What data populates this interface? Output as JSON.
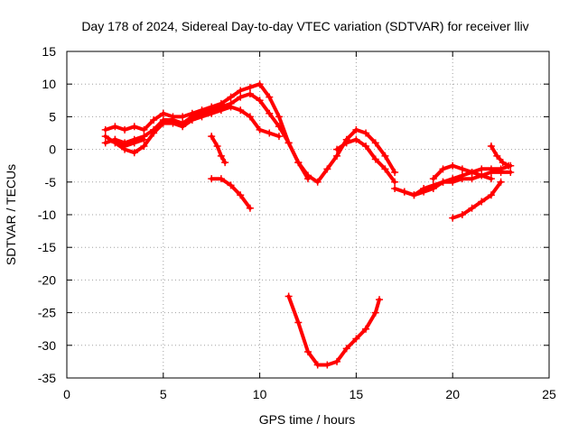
{
  "chart_data": {
    "type": "scatter",
    "title": "Day 178 of 2024, Sidereal Day-to-day VTEC variation (SDTVAR) for receiver lliv",
    "xlabel": "GPS time / hours",
    "ylabel": "SDTVAR / TECUs",
    "xlim": [
      0,
      25
    ],
    "ylim": [
      -35,
      15
    ],
    "xticks": [
      "0",
      "5",
      "10",
      "15",
      "20",
      "25"
    ],
    "yticks": [
      "15",
      "10",
      "5",
      "0",
      "-5",
      "-10",
      "-15",
      "-20",
      "-25",
      "-30",
      "-35"
    ],
    "grid": true,
    "marker": "plus",
    "color": "#ff0000",
    "series": [
      {
        "x": [
          2.0,
          2.5,
          3.0,
          3.5,
          4.0,
          4.5,
          5.0,
          5.5,
          6.0,
          6.5,
          7.0,
          7.5,
          8.0,
          8.5,
          9.0,
          9.5,
          10.0,
          10.5,
          11.0,
          11.5,
          12.0,
          12.5,
          13.0,
          13.5,
          14.0,
          14.5,
          15.0,
          15.5,
          16.0,
          16.5,
          17.0
        ],
        "y": [
          3.0,
          3.5,
          3.0,
          3.5,
          3.0,
          4.5,
          5.5,
          5.0,
          5.0,
          5.5,
          6.0,
          6.5,
          7.0,
          8.0,
          9.0,
          9.5,
          10.0,
          8.0,
          5.0,
          1.0,
          -2.0,
          -4.0,
          -5.0,
          -3.0,
          -1.0,
          1.5,
          3.0,
          2.5,
          1.0,
          -1.0,
          -3.5
        ]
      },
      {
        "x": [
          2.0,
          2.5,
          3.0,
          3.5,
          4.0,
          4.5,
          5.0,
          5.5,
          6.0,
          6.5,
          7.0,
          7.5,
          8.0,
          8.5,
          9.0,
          9.5,
          10.0,
          10.5,
          11.0,
          11.5,
          12.0,
          12.5
        ],
        "y": [
          1.0,
          1.5,
          1.0,
          1.5,
          2.0,
          3.0,
          4.5,
          4.5,
          4.0,
          5.0,
          5.5,
          6.0,
          6.5,
          7.0,
          8.0,
          8.5,
          7.5,
          5.5,
          3.5,
          1.0,
          -2.0,
          -4.5
        ]
      },
      {
        "x": [
          2.0,
          2.5,
          3.0,
          3.5,
          4.0,
          4.5,
          5.0,
          5.5,
          6.0,
          6.5,
          7.0,
          7.5,
          8.0,
          8.5,
          9.0,
          9.5,
          10.0,
          10.5,
          11.0
        ],
        "y": [
          2.0,
          1.0,
          0.0,
          -0.5,
          0.5,
          2.5,
          4.0,
          4.0,
          3.5,
          4.5,
          5.0,
          5.5,
          6.0,
          6.5,
          6.0,
          5.0,
          3.0,
          2.5,
          2.0
        ]
      },
      {
        "x": [
          2.5,
          3.0,
          3.5,
          4.0
        ],
        "y": [
          1.5,
          0.5,
          1.0,
          1.5
        ]
      },
      {
        "x": [
          7.5,
          7.8,
          8.0,
          8.2
        ],
        "y": [
          2.0,
          0.5,
          -1.0,
          -2.0
        ]
      },
      {
        "x": [
          7.5,
          8.0,
          8.5,
          9.0,
          9.5
        ],
        "y": [
          -4.5,
          -4.5,
          -5.5,
          -7.0,
          -9.0
        ]
      },
      {
        "x": [
          11.5,
          12.0,
          12.5,
          13.0,
          13.5,
          14.0,
          14.5,
          15.0,
          15.5,
          16.0,
          16.2
        ],
        "y": [
          -22.5,
          -26.5,
          -31.0,
          -33.0,
          -33.0,
          -32.5,
          -30.5,
          -29.0,
          -27.5,
          -25.0,
          -23.0
        ]
      },
      {
        "x": [
          14.0,
          14.5,
          15.0,
          15.5,
          16.0,
          16.5,
          17.0
        ],
        "y": [
          0.0,
          1.0,
          1.5,
          0.5,
          -1.5,
          -3.0,
          -5.0
        ]
      },
      {
        "x": [
          17.0,
          17.5,
          18.0,
          18.5,
          19.0,
          19.5,
          20.0,
          20.5,
          21.0,
          21.5,
          22.0,
          22.5,
          23.0
        ],
        "y": [
          -6.0,
          -6.5,
          -7.0,
          -6.5,
          -6.0,
          -5.0,
          -4.5,
          -4.0,
          -3.5,
          -3.0,
          -3.0,
          -3.0,
          -2.5
        ]
      },
      {
        "x": [
          17.5,
          18.0,
          18.5,
          19.0,
          19.5,
          20.0,
          20.5,
          21.0,
          21.5,
          22.0,
          22.5,
          23.0
        ],
        "y": [
          -6.5,
          -7.0,
          -6.0,
          -5.5,
          -5.0,
          -5.0,
          -4.5,
          -4.5,
          -4.0,
          -3.5,
          -3.5,
          -3.5
        ]
      },
      {
        "x": [
          19.0,
          19.5,
          20.0,
          20.5,
          21.0,
          21.5,
          22.0
        ],
        "y": [
          -4.5,
          -3.0,
          -2.5,
          -3.0,
          -3.5,
          -4.0,
          -4.5
        ]
      },
      {
        "x": [
          20.0,
          20.5,
          21.0,
          21.5,
          22.0,
          22.5
        ],
        "y": [
          -10.5,
          -10.0,
          -9.0,
          -8.0,
          -7.0,
          -5.0
        ]
      },
      {
        "x": [
          22.0,
          22.3,
          22.6,
          22.9
        ],
        "y": [
          0.5,
          -1.0,
          -2.0,
          -2.5
        ]
      }
    ]
  }
}
